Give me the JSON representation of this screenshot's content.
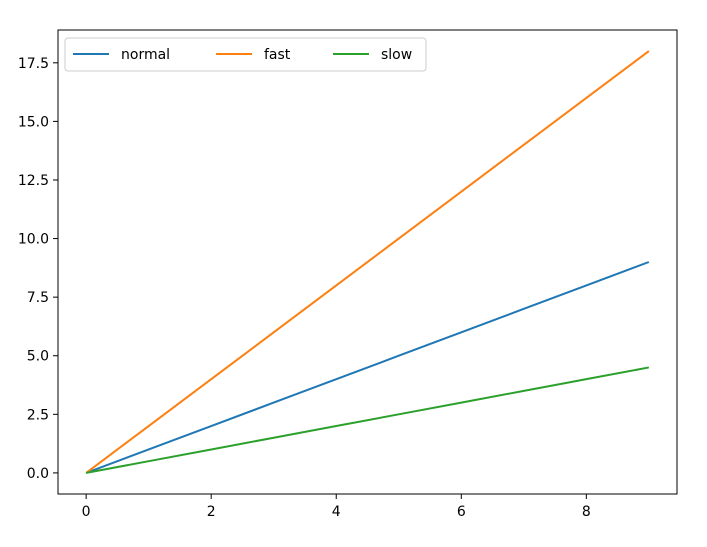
{
  "chart_data": {
    "type": "line",
    "x": [
      0,
      1,
      2,
      3,
      4,
      5,
      6,
      7,
      8,
      9
    ],
    "series": [
      {
        "name": "normal",
        "color": "#1f77b4",
        "values": [
          0,
          1,
          2,
          3,
          4,
          5,
          6,
          7,
          8,
          9
        ]
      },
      {
        "name": "fast",
        "color": "#ff7f0e",
        "values": [
          0,
          2,
          4,
          6,
          8,
          10,
          12,
          14,
          16,
          18
        ]
      },
      {
        "name": "slow",
        "color": "#2ca02c",
        "values": [
          0,
          0.5,
          1,
          1.5,
          2,
          2.5,
          3,
          3.5,
          4,
          4.5
        ]
      }
    ],
    "xlim": [
      -0.45,
      9.45
    ],
    "ylim": [
      -0.9,
      18.9
    ],
    "xticks": [
      0,
      2,
      4,
      6,
      8
    ],
    "xtick_labels": [
      "0",
      "2",
      "4",
      "6",
      "8"
    ],
    "yticks": [
      0,
      2.5,
      5,
      7.5,
      10,
      12.5,
      15,
      17.5
    ],
    "ytick_labels": [
      "0.0",
      "2.5",
      "5.0",
      "7.5",
      "10.0",
      "12.5",
      "15.0",
      "17.5"
    ],
    "grid": false,
    "legend": {
      "placement": "top-left",
      "columns": 3
    }
  }
}
